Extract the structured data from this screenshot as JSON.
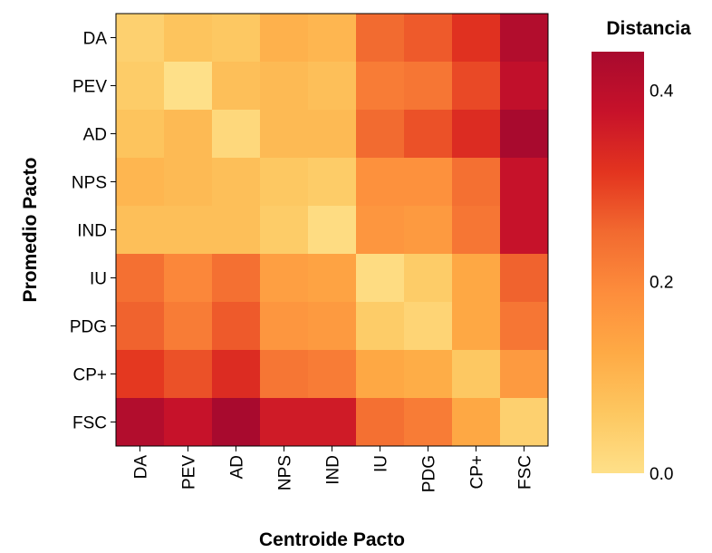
{
  "chart_data": {
    "type": "heatmap",
    "xlabel": "Centroide Pacto",
    "ylabel": "Promedio Pacto",
    "x_categories": [
      "DA",
      "PEV",
      "AD",
      "NPS",
      "IND",
      "IU",
      "PDG",
      "CP+",
      "FSC"
    ],
    "y_categories": [
      "DA",
      "PEV",
      "AD",
      "NPS",
      "IND",
      "IU",
      "PDG",
      "CP+",
      "FSC"
    ],
    "values": [
      [
        0.04,
        0.07,
        0.06,
        0.11,
        0.1,
        0.25,
        0.27,
        0.32,
        0.42
      ],
      [
        0.05,
        0.0,
        0.08,
        0.09,
        0.08,
        0.22,
        0.23,
        0.29,
        0.39
      ],
      [
        0.07,
        0.09,
        0.02,
        0.09,
        0.09,
        0.25,
        0.28,
        0.33,
        0.44
      ],
      [
        0.1,
        0.09,
        0.08,
        0.06,
        0.05,
        0.18,
        0.18,
        0.24,
        0.38
      ],
      [
        0.08,
        0.08,
        0.08,
        0.05,
        0.01,
        0.17,
        0.16,
        0.23,
        0.38
      ],
      [
        0.24,
        0.2,
        0.24,
        0.15,
        0.14,
        0.01,
        0.05,
        0.13,
        0.26
      ],
      [
        0.26,
        0.22,
        0.27,
        0.17,
        0.16,
        0.05,
        0.03,
        0.13,
        0.23
      ],
      [
        0.31,
        0.28,
        0.33,
        0.23,
        0.22,
        0.13,
        0.12,
        0.06,
        0.16
      ],
      [
        0.42,
        0.38,
        0.44,
        0.36,
        0.36,
        0.24,
        0.22,
        0.13,
        0.04
      ]
    ],
    "color_range": [
      0.0,
      0.44
    ],
    "color_scheme": [
      "#fee089",
      "#fdc760",
      "#feaa45",
      "#fd8d3c",
      "#f26a30",
      "#e3341f",
      "#c7122a",
      "#a80a2e"
    ],
    "legend": {
      "title": "Distancia",
      "ticks": [
        0.0,
        0.2,
        0.4
      ],
      "tick_labels": [
        "0.0",
        "0.2",
        "0.4"
      ],
      "position": "right"
    }
  }
}
